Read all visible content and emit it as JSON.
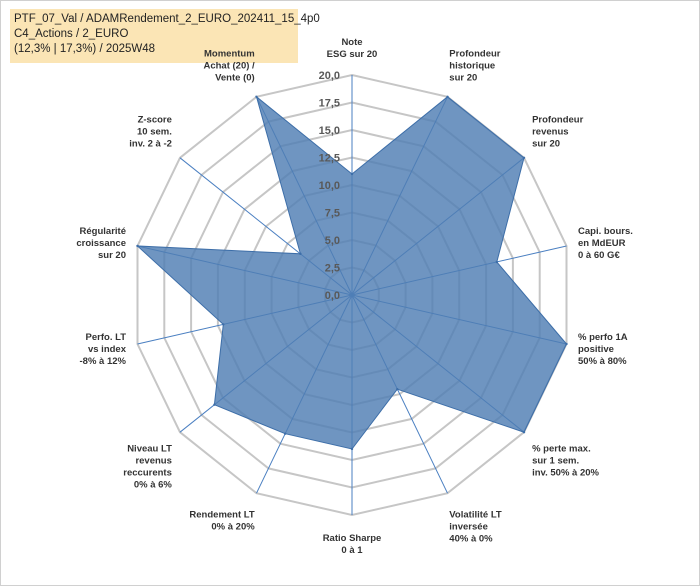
{
  "title_box": {
    "line1": "PTF_07_Val / ADAMRendement_2_EURO_202411_15_4p0",
    "line2": "C4_Actions / 2_EURO",
    "line3": "(12,3% | 17,3%) / 2025W48"
  },
  "chart_data": {
    "type": "radar",
    "title": "",
    "rmin": 0,
    "rmax": 20,
    "tick_values": [
      0,
      2.5,
      5,
      7.5,
      10,
      12.5,
      15,
      17.5,
      20
    ],
    "tick_labels": [
      "0,0",
      "2,5",
      "5,0",
      "7,5",
      "10,0",
      "12,5",
      "15,0",
      "17,5",
      "20,0"
    ],
    "grid": true,
    "axes": [
      [
        "Note",
        "ESG sur 20"
      ],
      [
        "Profondeur",
        "historique",
        "sur 20"
      ],
      [
        "Profondeur",
        "revenus",
        "sur 20"
      ],
      [
        "Capi. bours.",
        "en MdEUR",
        "0 à 60 G€"
      ],
      [
        "% perfo 1A",
        "positive",
        "50% à 80%"
      ],
      [
        "% perte max.",
        "sur 1 sem.",
        "inv. 50% à 20%"
      ],
      [
        "Volatilité LT",
        "inversée",
        "40% à 0%"
      ],
      [
        "Ratio Sharpe",
        "0 à 1"
      ],
      [
        "Rendement LT",
        "0% à 20%"
      ],
      [
        "Niveau LT",
        "revenus",
        "reccurents",
        "0% à 6%"
      ],
      [
        "Perfo. LT",
        "vs index",
        "-8% à 12%"
      ],
      [
        "Régularité",
        "croissance",
        "sur 20"
      ],
      [
        "Z-score",
        "10 sem.",
        "inv. 2 à -2"
      ],
      [
        "Momentum",
        "Achat (20) /",
        "Vente (0)"
      ]
    ],
    "series": [
      {
        "values": [
          11,
          20,
          20,
          13.5,
          20,
          20,
          9.5,
          14,
          14,
          16,
          12,
          20,
          6,
          20
        ],
        "color": "#4f7eb3"
      }
    ]
  }
}
